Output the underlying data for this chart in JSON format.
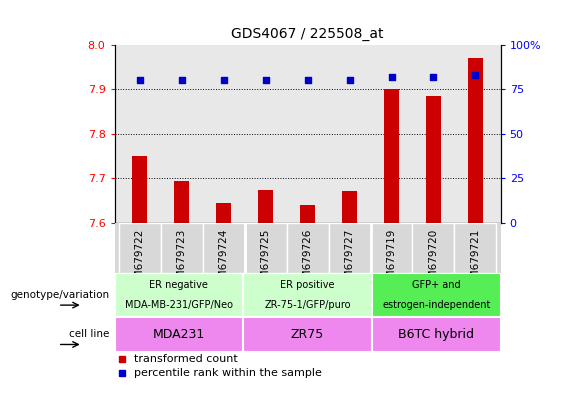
{
  "title": "GDS4067 / 225508_at",
  "samples": [
    "GSM679722",
    "GSM679723",
    "GSM679724",
    "GSM679725",
    "GSM679726",
    "GSM679727",
    "GSM679719",
    "GSM679720",
    "GSM679721"
  ],
  "bar_values": [
    7.75,
    7.695,
    7.645,
    7.675,
    7.64,
    7.672,
    7.9,
    7.885,
    7.97
  ],
  "percentile_values": [
    80,
    80,
    80,
    80,
    80,
    80,
    82,
    82,
    83
  ],
  "bar_color": "#cc0000",
  "dot_color": "#0000cc",
  "ylim_left": [
    7.6,
    8.0
  ],
  "ylim_right": [
    0,
    100
  ],
  "yticks_left": [
    7.6,
    7.7,
    7.8,
    7.9,
    8.0
  ],
  "yticks_right": [
    0,
    25,
    50,
    75,
    100
  ],
  "grid_values": [
    7.7,
    7.8,
    7.9
  ],
  "groups": [
    {
      "label_top": "ER negative",
      "label_bot": "MDA-MB-231/GFP/Neo",
      "start": 0,
      "end": 3,
      "color": "#ccffcc"
    },
    {
      "label_top": "ER positive",
      "label_bot": "ZR-75-1/GFP/puro",
      "start": 3,
      "end": 6,
      "color": "#ccffcc"
    },
    {
      "label_top": "GFP+ and",
      "label_bot": "estrogen-independent",
      "start": 6,
      "end": 9,
      "color": "#55ee55"
    }
  ],
  "cell_lines": [
    {
      "label": "MDA231",
      "start": 0,
      "end": 3
    },
    {
      "label": "ZR75",
      "start": 3,
      "end": 6
    },
    {
      "label": "B6TC hybrid",
      "start": 6,
      "end": 9
    }
  ],
  "cell_line_color": "#ee88ee",
  "cell_line_color_right": "#ddaadd",
  "genotype_label": "genotype/variation",
  "cell_line_label": "cell line",
  "legend_bar": "transformed count",
  "legend_dot": "percentile rank within the sample",
  "bar_width": 0.35,
  "plot_bg": "#e8e8e8",
  "tick_label_bg": "#d8d8d8"
}
